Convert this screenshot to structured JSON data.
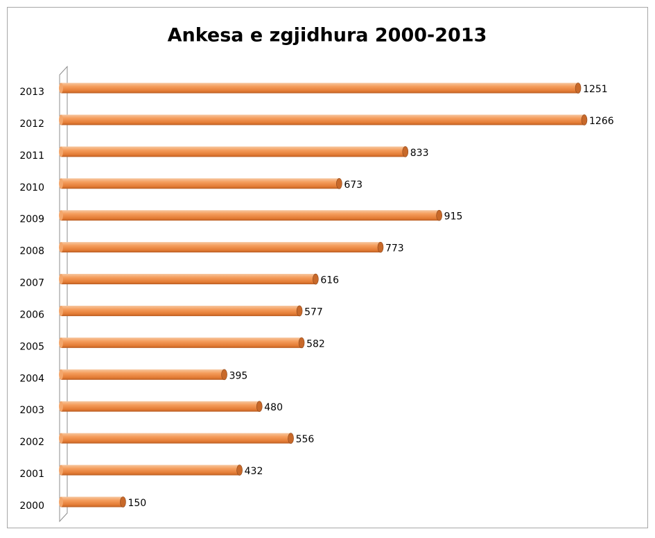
{
  "chart_data": {
    "type": "bar",
    "orientation": "horizontal",
    "title": "Ankesa e zgjidhura 2000-2013",
    "categories": [
      "2000",
      "2001",
      "2002",
      "2003",
      "2004",
      "2005",
      "2006",
      "2007",
      "2008",
      "2009",
      "2010",
      "2011",
      "2012",
      "2013"
    ],
    "values": [
      150,
      432,
      556,
      480,
      395,
      582,
      577,
      616,
      773,
      915,
      673,
      833,
      1266,
      1251
    ],
    "color": "#f0904a"
  }
}
